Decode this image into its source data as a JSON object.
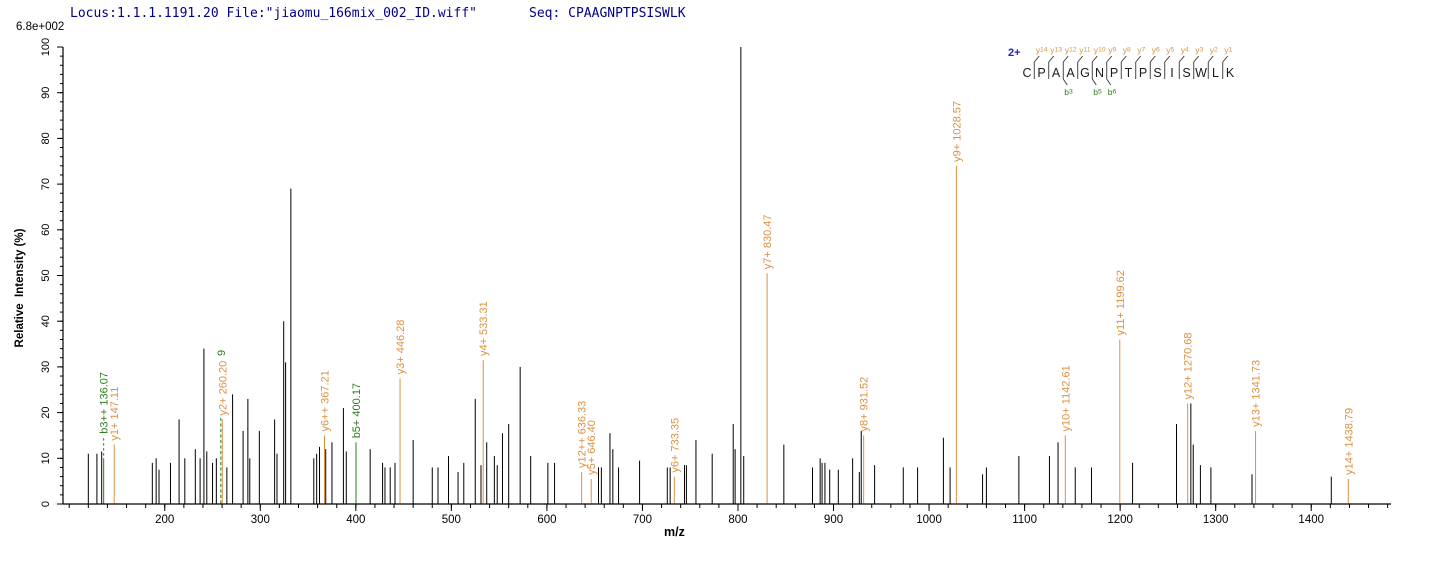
{
  "header": {
    "locus_file": "Locus:1.1.1.1191.20 File:\"jiaomu_166mix_002_ID.wiff\"",
    "seq_label": "Seq: CPAAGNPTPSISWLK"
  },
  "max_intensity_label": "6.8e+002",
  "colors": {
    "black": "#000000",
    "orange": "#DC9140",
    "green": "#2E7D1F",
    "navy": "#00008B",
    "blue": "#2121CC",
    "axis": "#000000",
    "ladder_letter": "#1a1a1a"
  },
  "chart_data": {
    "type": "bar",
    "subtype": "ms2-stick-spectrum",
    "title": "",
    "xlabel": "m/z",
    "ylabel": "Relative  Intensity (%)",
    "xlim": [
      93.5,
      1483.5
    ],
    "ylim": [
      0,
      100
    ],
    "x_minor_step": 20,
    "x_tick_labels": [
      "200",
      "300",
      "400",
      "500",
      "600",
      "700",
      "800",
      "900",
      "1000",
      "1100",
      "1200",
      "1300",
      "1400"
    ],
    "x_tick_values": [
      200,
      300,
      400,
      500,
      600,
      700,
      800,
      900,
      1000,
      1100,
      1200,
      1300,
      1400
    ],
    "y_minor_step": 2,
    "y_major_step": 10,
    "y_tick_labels": [
      "0",
      "10",
      "20",
      "30",
      "40",
      "50",
      "60",
      "70",
      "80",
      "90",
      "100"
    ],
    "grid": false,
    "legend": "none",
    "precursor_charge": "2+",
    "sequence": "CPAAGNPTPSISWLK",
    "y_ion_ladder": [
      "y14",
      "y13",
      "y12",
      "y11",
      "y10",
      "y9",
      "y8",
      "y7",
      "y6",
      "y5",
      "y4",
      "y3",
      "y2",
      "y1"
    ],
    "b_ion_ladder": [
      {
        "label": "b3",
        "divider": 2
      },
      {
        "label": "b5",
        "divider": 4
      },
      {
        "label": "b6",
        "divider": 5
      }
    ],
    "peaks": [
      {
        "mz": 120,
        "i": 11
      },
      {
        "mz": 129,
        "i": 11
      },
      {
        "mz": 134,
        "i": 11.5
      },
      {
        "mz": 136.07,
        "i": 9.5,
        "color": "green",
        "label": "b3++ 136.07",
        "connector_to": 14.5
      },
      {
        "mz": 147.11,
        "i": 13,
        "color": "orange",
        "label": "y1+ 147.11"
      },
      {
        "mz": 187,
        "i": 9
      },
      {
        "mz": 191,
        "i": 10
      },
      {
        "mz": 194,
        "i": 7.5
      },
      {
        "mz": 206,
        "i": 9
      },
      {
        "mz": 215,
        "i": 18.5
      },
      {
        "mz": 221,
        "i": 10
      },
      {
        "mz": 232,
        "i": 12
      },
      {
        "mz": 237,
        "i": 10
      },
      {
        "mz": 241,
        "i": 34
      },
      {
        "mz": 244,
        "i": 11.5
      },
      {
        "mz": 250,
        "i": 9
      },
      {
        "mz": 254,
        "i": 10
      },
      {
        "mz": 258.7,
        "i": 19.5,
        "color": "green",
        "label": "9",
        "style": "dashed",
        "label_at": 31.5
      },
      {
        "mz": 260.2,
        "i": 18.5,
        "color": "orange",
        "label": "y2+ 260.20"
      },
      {
        "mz": 265,
        "i": 8
      },
      {
        "mz": 271,
        "i": 24
      },
      {
        "mz": 282,
        "i": 16
      },
      {
        "mz": 287,
        "i": 23
      },
      {
        "mz": 289,
        "i": 10
      },
      {
        "mz": 299,
        "i": 16
      },
      {
        "mz": 315,
        "i": 18.5
      },
      {
        "mz": 317.5,
        "i": 11
      },
      {
        "mz": 324.5,
        "i": 40
      },
      {
        "mz": 326.5,
        "i": 31
      },
      {
        "mz": 332,
        "i": 69
      },
      {
        "mz": 356,
        "i": 10
      },
      {
        "mz": 359,
        "i": 11
      },
      {
        "mz": 362,
        "i": 12.5
      },
      {
        "mz": 367.21,
        "i": 15,
        "color": "orange",
        "label": "y6++ 367.21"
      },
      {
        "mz": 368.5,
        "i": 12
      },
      {
        "mz": 375,
        "i": 13.5
      },
      {
        "mz": 387,
        "i": 21
      },
      {
        "mz": 390,
        "i": 11.5
      },
      {
        "mz": 400.17,
        "i": 13.5,
        "color": "green",
        "label": "b5+ 400.17"
      },
      {
        "mz": 415,
        "i": 12
      },
      {
        "mz": 428,
        "i": 9
      },
      {
        "mz": 430.5,
        "i": 8
      },
      {
        "mz": 436,
        "i": 8
      },
      {
        "mz": 441,
        "i": 9
      },
      {
        "mz": 446.28,
        "i": 27.5,
        "color": "orange",
        "label": "y3+ 446.28"
      },
      {
        "mz": 460,
        "i": 14
      },
      {
        "mz": 480,
        "i": 8
      },
      {
        "mz": 486,
        "i": 8
      },
      {
        "mz": 497,
        "i": 10.5
      },
      {
        "mz": 507,
        "i": 7
      },
      {
        "mz": 513,
        "i": 9
      },
      {
        "mz": 525,
        "i": 23
      },
      {
        "mz": 531,
        "i": 8.5
      },
      {
        "mz": 533.31,
        "i": 31.5,
        "color": "orange",
        "label": "y4+ 533.31"
      },
      {
        "mz": 537,
        "i": 13.5
      },
      {
        "mz": 545,
        "i": 10.5
      },
      {
        "mz": 548,
        "i": 8.5
      },
      {
        "mz": 553.5,
        "i": 15.5
      },
      {
        "mz": 560,
        "i": 17.5
      },
      {
        "mz": 572,
        "i": 30
      },
      {
        "mz": 583,
        "i": 10.5
      },
      {
        "mz": 601,
        "i": 9
      },
      {
        "mz": 608,
        "i": 9
      },
      {
        "mz": 636.33,
        "i": 7,
        "color": "orange",
        "label": "y12++ 636.33"
      },
      {
        "mz": 646.4,
        "i": 5.5,
        "color": "orange",
        "label": "y5+ 646.40"
      },
      {
        "mz": 654,
        "i": 8
      },
      {
        "mz": 657,
        "i": 8
      },
      {
        "mz": 666,
        "i": 15.5
      },
      {
        "mz": 669,
        "i": 12
      },
      {
        "mz": 675,
        "i": 8
      },
      {
        "mz": 697,
        "i": 9.5
      },
      {
        "mz": 726,
        "i": 8
      },
      {
        "mz": 729,
        "i": 8
      },
      {
        "mz": 733.35,
        "i": 6,
        "color": "orange",
        "label": "y6+ 733.35"
      },
      {
        "mz": 744,
        "i": 8.5
      },
      {
        "mz": 746,
        "i": 8.5
      },
      {
        "mz": 756,
        "i": 14
      },
      {
        "mz": 773,
        "i": 11
      },
      {
        "mz": 795,
        "i": 17.5
      },
      {
        "mz": 797,
        "i": 12
      },
      {
        "mz": 803,
        "i": 100
      },
      {
        "mz": 806,
        "i": 10.5
      },
      {
        "mz": 830.47,
        "i": 50.5,
        "color": "orange",
        "label": "y7+ 830.47"
      },
      {
        "mz": 848,
        "i": 13
      },
      {
        "mz": 878,
        "i": 8
      },
      {
        "mz": 886,
        "i": 10
      },
      {
        "mz": 888,
        "i": 9
      },
      {
        "mz": 891,
        "i": 9
      },
      {
        "mz": 896,
        "i": 7.5
      },
      {
        "mz": 905,
        "i": 7.5
      },
      {
        "mz": 920,
        "i": 10
      },
      {
        "mz": 927,
        "i": 7
      },
      {
        "mz": 929,
        "i": 16
      },
      {
        "mz": 931.52,
        "i": 15,
        "color": "orange",
        "label": "y8+ 931.52"
      },
      {
        "mz": 943,
        "i": 8.5
      },
      {
        "mz": 973,
        "i": 8
      },
      {
        "mz": 988,
        "i": 8
      },
      {
        "mz": 1015,
        "i": 14.5
      },
      {
        "mz": 1022,
        "i": 8
      },
      {
        "mz": 1028.57,
        "i": 74,
        "color": "orange",
        "label": "y9+ 1028.57"
      },
      {
        "mz": 1056,
        "i": 6.5
      },
      {
        "mz": 1060,
        "i": 8
      },
      {
        "mz": 1094,
        "i": 10.5
      },
      {
        "mz": 1126,
        "i": 10.5
      },
      {
        "mz": 1135,
        "i": 13.5
      },
      {
        "mz": 1142.61,
        "i": 15,
        "color": "orange",
        "label": "y10+ 1142.61"
      },
      {
        "mz": 1153,
        "i": 8
      },
      {
        "mz": 1170,
        "i": 8
      },
      {
        "mz": 1199.62,
        "i": 36,
        "color": "orange",
        "label": "y11+ 1199.62"
      },
      {
        "mz": 1213,
        "i": 9
      },
      {
        "mz": 1259,
        "i": 17.5
      },
      {
        "mz": 1270.68,
        "i": 22,
        "color": "orange",
        "label": "y12+ 1270.68"
      },
      {
        "mz": 1274,
        "i": 22
      },
      {
        "mz": 1276.5,
        "i": 13
      },
      {
        "mz": 1284,
        "i": 8.5
      },
      {
        "mz": 1295,
        "i": 8
      },
      {
        "mz": 1338,
        "i": 6.5
      },
      {
        "mz": 1341.73,
        "i": 16,
        "color": "orange",
        "label": "y13+ 1341.73"
      },
      {
        "mz": 1421,
        "i": 6
      },
      {
        "mz": 1438.79,
        "i": 5.5,
        "color": "orange",
        "label": "y14+ 1438.79"
      }
    ]
  }
}
